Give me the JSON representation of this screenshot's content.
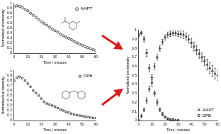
{
  "chart_data": [
    {
      "type": "scatter",
      "x_label": "Time / minutes",
      "y_label": "Normalized ion intensity",
      "xlim": [
        0,
        60
      ],
      "xticks": [
        0,
        10,
        20,
        30,
        40,
        50,
        60
      ],
      "ylim": [
        0,
        1
      ],
      "yticks": [
        0,
        0.1,
        0.2,
        0.3,
        0.4,
        0.5,
        0.6,
        0.7,
        0.8,
        0.9,
        1
      ],
      "grid": false,
      "legend": "upper right",
      "series": [
        {
          "name": "A/4PT",
          "color": "#000000",
          "marker": "circle",
          "x": [
            0,
            2,
            4,
            6,
            8,
            10,
            12,
            14,
            16,
            18,
            20,
            22,
            24,
            26,
            28,
            30,
            32,
            34,
            36,
            38,
            40,
            42,
            44,
            46,
            48,
            50,
            52,
            54,
            56,
            58,
            60
          ],
          "values": [
            0.93,
            0.95,
            0.94,
            0.92,
            0.88,
            0.85,
            0.8,
            0.76,
            0.72,
            0.68,
            0.63,
            0.6,
            0.56,
            0.52,
            0.48,
            0.45,
            0.42,
            0.38,
            0.35,
            0.32,
            0.3,
            0.27,
            0.24,
            0.21,
            0.18,
            0.16,
            0.13,
            0.11,
            0.09,
            0.07,
            0.05
          ]
        }
      ]
    },
    {
      "type": "scatter",
      "x_label": "Time / minutes",
      "y_label": "Normalized ion intensity",
      "xlim": [
        0,
        60
      ],
      "xticks": [
        0,
        10,
        20,
        30,
        40,
        50,
        60
      ],
      "ylim": [
        0,
        1
      ],
      "yticks": [
        0,
        0.1,
        0.2,
        0.3,
        0.4,
        0.5,
        0.6,
        0.7,
        0.8,
        0.9,
        1
      ],
      "grid": false,
      "legend": "upper right",
      "series": [
        {
          "name": "DPB",
          "color": "#000000",
          "marker": "square",
          "x": [
            0,
            2,
            4,
            6,
            8,
            10,
            12,
            14,
            16,
            18,
            20,
            22,
            24,
            26,
            28,
            30,
            32,
            34,
            36,
            38,
            40,
            42,
            44,
            46,
            48,
            50,
            52,
            54,
            56,
            58,
            60
          ],
          "values": [
            0.8,
            0.86,
            0.88,
            0.85,
            0.8,
            0.74,
            0.68,
            0.6,
            0.55,
            0.5,
            0.44,
            0.38,
            0.34,
            0.32,
            0.3,
            0.28,
            0.25,
            0.22,
            0.2,
            0.18,
            0.16,
            0.14,
            0.12,
            0.11,
            0.1,
            0.09,
            0.08,
            0.07,
            0.06,
            0.05,
            0.05
          ]
        }
      ]
    },
    {
      "type": "scatter",
      "x_label": "Time / minutes",
      "y_label": "Normalized ion intensity",
      "xlim": [
        0,
        60
      ],
      "xticks": [
        0,
        10,
        20,
        30,
        40,
        50,
        60
      ],
      "ylim": [
        0,
        1
      ],
      "yticks": [
        0,
        0.1,
        0.2,
        0.3,
        0.4,
        0.5,
        0.6,
        0.7,
        0.8,
        0.9,
        1
      ],
      "grid": false,
      "legend": "lower right",
      "series": [
        {
          "name": "A/4PT",
          "color": "#000000",
          "marker": "triangle",
          "x": [
            0,
            2,
            4,
            6,
            8,
            10,
            12,
            14,
            16,
            18,
            20,
            22,
            24,
            26,
            28,
            30,
            32,
            34,
            36,
            38,
            40,
            42,
            44,
            46,
            48,
            50,
            52,
            54,
            56,
            58,
            60
          ],
          "values": [
            0,
            0.05,
            0.12,
            0.22,
            0.35,
            0.48,
            0.6,
            0.7,
            0.8,
            0.87,
            0.92,
            0.95,
            0.96,
            0.97,
            0.97,
            0.96,
            0.96,
            0.95,
            0.93,
            0.9,
            0.86,
            0.82,
            0.78,
            0.74,
            0.7,
            0.66,
            0.62,
            0.58,
            0.55,
            0.52,
            0.5
          ],
          "error": [
            0.01,
            0.02,
            0.02,
            0.03,
            0.03,
            0.03,
            0.03,
            0.03,
            0.03,
            0.03,
            0.03,
            0.03,
            0.03,
            0.03,
            0.03,
            0.03,
            0.04,
            0.04,
            0.04,
            0.04,
            0.05,
            0.05,
            0.05,
            0.05,
            0.05,
            0.05,
            0.06,
            0.06,
            0.06,
            0.06,
            0.06
          ]
        },
        {
          "name": "DPB",
          "color": "#000000",
          "marker": "square",
          "x": [
            0,
            2,
            4,
            6,
            8,
            10,
            12,
            14,
            16,
            18,
            20,
            22,
            24,
            26,
            28,
            30
          ],
          "values": [
            0.95,
            0.97,
            0.9,
            0.75,
            0.58,
            0.42,
            0.3,
            0.2,
            0.12,
            0.07,
            0.04,
            0.02,
            0.01,
            0.01,
            0,
            0
          ],
          "error": [
            0.02,
            0.02,
            0.03,
            0.04,
            0.04,
            0.04,
            0.03,
            0.03,
            0.02,
            0.02,
            0.01,
            0.01,
            0.01,
            0.01,
            0.01,
            0.01
          ]
        }
      ]
    }
  ]
}
